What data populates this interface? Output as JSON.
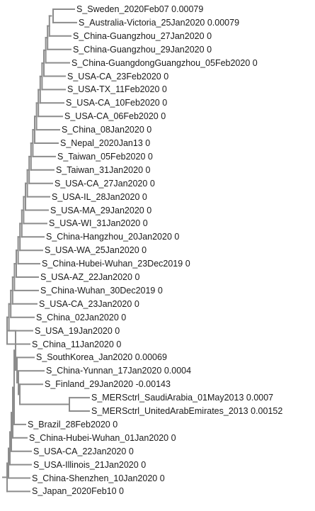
{
  "tree": {
    "colors": {
      "branch": "#8c8c8c",
      "text": "#1a1a1a",
      "background": "#ffffff"
    },
    "leaves": [
      {
        "name": "S_Sweden_2020Feb07",
        "value": "0.00079"
      },
      {
        "name": "S_Australia-Victoria_25Jan2020",
        "value": "0.00079"
      },
      {
        "name": "S_China-Guangzhou_27Jan2020",
        "value": "0"
      },
      {
        "name": "S_China-Guangzhou_29Jan2020",
        "value": "0"
      },
      {
        "name": "S_China-GuangdongGuangzhou_05Feb2020",
        "value": "0"
      },
      {
        "name": "S_USA-CA_23Feb2020",
        "value": "0"
      },
      {
        "name": "S_USA-TX_11Feb2020",
        "value": "0"
      },
      {
        "name": "S_USA-CA_10Feb2020",
        "value": "0"
      },
      {
        "name": "S_USA-CA_06Feb2020",
        "value": "0"
      },
      {
        "name": "S_China_08Jan2020",
        "value": "0"
      },
      {
        "name": "S_Nepal_2020Jan13",
        "value": "0"
      },
      {
        "name": "S_Taiwan_05Feb2020",
        "value": "0"
      },
      {
        "name": "S_Taiwan_31Jan2020",
        "value": "0"
      },
      {
        "name": "S_USA-CA_27Jan2020",
        "value": "0"
      },
      {
        "name": "S_USA-IL_28Jan2020",
        "value": "0"
      },
      {
        "name": "S_USA-MA_29Jan2020",
        "value": "0"
      },
      {
        "name": "S_USA-WI_31Jan2020",
        "value": "0"
      },
      {
        "name": "S_China-Hangzhou_20Jan2020",
        "value": "0"
      },
      {
        "name": "S_USA-WA_25Jan2020",
        "value": "0"
      },
      {
        "name": "S_China-Hubei-Wuhan_23Dec2019",
        "value": "0"
      },
      {
        "name": "S_USA-AZ_22Jan2020",
        "value": "0"
      },
      {
        "name": "S_China-Wuhan_30Dec2019",
        "value": "0"
      },
      {
        "name": "S_USA-CA_23Jan2020",
        "value": "0"
      },
      {
        "name": "S_China_02Jan2020",
        "value": "0"
      },
      {
        "name": "S_USA_19Jan2020",
        "value": "0"
      },
      {
        "name": "S_China_11Jan2020",
        "value": "0"
      },
      {
        "name": "S_SouthKorea_Jan2020",
        "value": "0.00069"
      },
      {
        "name": "S_China-Yunnan_17Jan2020",
        "value": "0.0004"
      },
      {
        "name": "S_Finland_29Jan2020",
        "value": "-0.00143"
      },
      {
        "name": "S_MERSctrl_SaudiArabia_01May2013",
        "value": "0.0007"
      },
      {
        "name": "S_MERSctrl_UnitedArabEmirates_2013",
        "value": "0.00152"
      },
      {
        "name": "S_Brazil_28Feb2020",
        "value": "0"
      },
      {
        "name": "S_China-Hubei-Wuhan_01Jan2020",
        "value": "0"
      },
      {
        "name": "S_USA-CA_22Jan2020",
        "value": "0"
      },
      {
        "name": "S_USA-Illinois_21Jan2020",
        "value": "0"
      },
      {
        "name": "S_China-Shenzhen_10Jan2020",
        "value": "0"
      },
      {
        "name": "S_Japan_2020Feb10",
        "value": "0"
      }
    ]
  }
}
